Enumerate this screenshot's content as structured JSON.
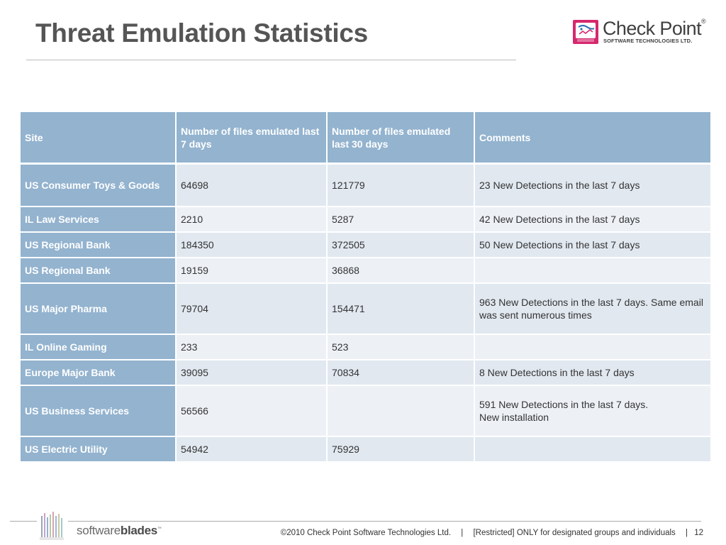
{
  "slide": {
    "title": "Threat Emulation Statistics",
    "logo_name": "Check Point",
    "logo_reg": "®",
    "logo_sub": "SOFTWARE TECHNOLOGIES LTD."
  },
  "table": {
    "headers": [
      "Site",
      "Number of files emulated last 7 days",
      "Number of files emulated last 30 days",
      "Comments"
    ],
    "rows": [
      [
        "US Consumer Toys & Goods",
        "64698",
        "121779",
        "23 New Detections in the last 7 days"
      ],
      [
        "IL Law Services",
        "2210",
        "5287",
        "42 New Detections in the last 7 days"
      ],
      [
        "US Regional Bank",
        "184350",
        "372505",
        "50 New Detections in the last 7 days"
      ],
      [
        "US Regional Bank",
        "19159",
        "36868",
        ""
      ],
      [
        "US Major Pharma",
        "79704",
        "154471",
        "963 New Detections in the last 7 days. Same email was sent numerous times"
      ],
      [
        "IL Online Gaming",
        "233",
        "523",
        ""
      ],
      [
        "Europe Major Bank",
        "39095",
        "70834",
        "8 New Detections in the last 7 days"
      ],
      [
        "US Business Services",
        "56566",
        "",
        "591 New Detections in the last 7 days.\nNew installation"
      ],
      [
        "US Electric Utility",
        "54942",
        "75929",
        ""
      ]
    ]
  },
  "footer": {
    "brand_light": "software",
    "brand_bold": "blades",
    "brand_tm": "™",
    "copyright": "©2010 Check Point Software Technologies Ltd.",
    "sep": "|",
    "classification": "[Restricted] ONLY for designated groups and individuals",
    "page_number": "12"
  },
  "colors": {
    "header_bg": "#93b3cf",
    "cell_bg": "#e1e8f0",
    "cell_bg_alt": "#edf1f6",
    "logo_accent": "#d6286e"
  },
  "icons": {
    "logo_mark": "checkpoint-logo-icon",
    "blades_mark": "software-blades-bars-icon"
  }
}
